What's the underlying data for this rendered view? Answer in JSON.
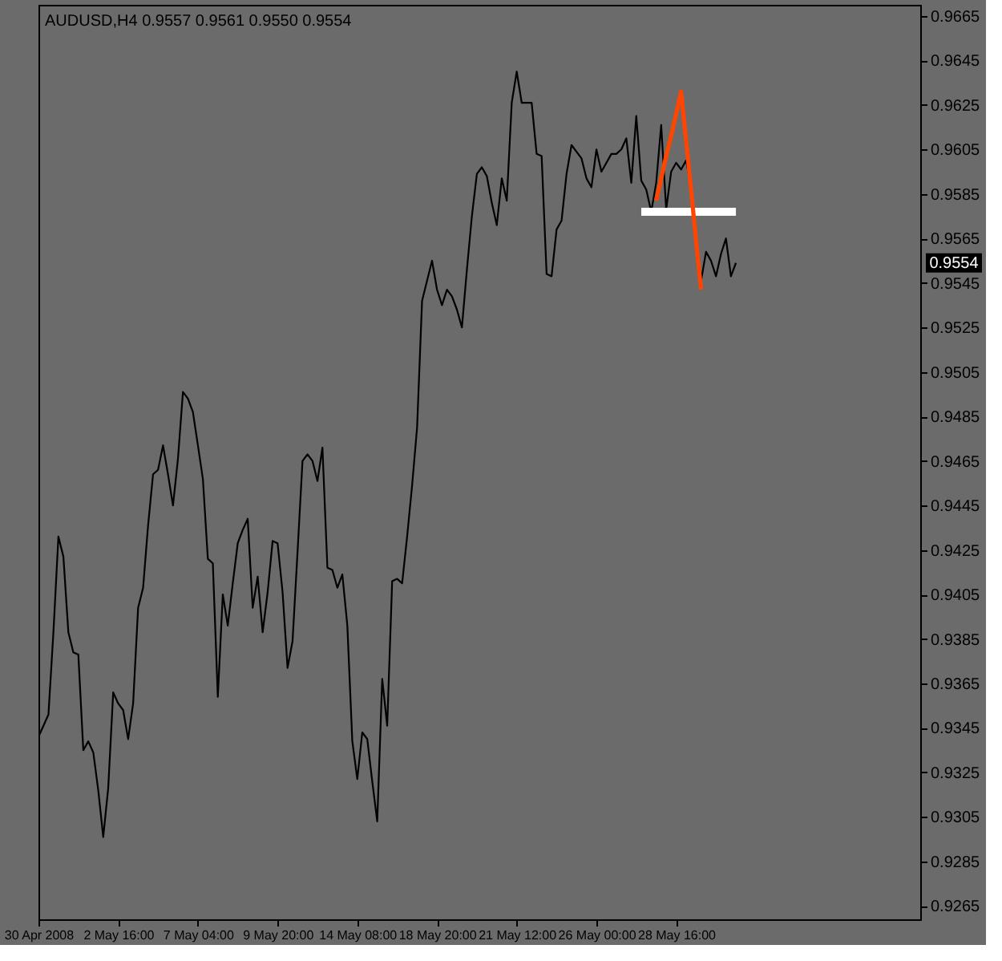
{
  "chart_data": {
    "type": "line",
    "title": "AUDUSD,H4 0.9557 0.9561 0.9550 0.9554",
    "categories": [
      "30 Apr 2008",
      null,
      null,
      null,
      null,
      null,
      null,
      null,
      null,
      null,
      null,
      null,
      null,
      null,
      null,
      null,
      "2 May 16:00",
      null,
      null,
      null,
      null,
      null,
      null,
      null,
      null,
      null,
      null,
      null,
      null,
      null,
      null,
      null,
      "7 May 04:00",
      null,
      null,
      null,
      null,
      null,
      null,
      null,
      null,
      null,
      null,
      null,
      null,
      null,
      null,
      null,
      "9 May 20:00",
      null,
      null,
      null,
      null,
      null,
      null,
      null,
      null,
      null,
      null,
      null,
      null,
      null,
      null,
      null,
      "14 May 08:00",
      null,
      null,
      null,
      null,
      null,
      null,
      null,
      null,
      null,
      null,
      null,
      null,
      null,
      null,
      null,
      "18 May 20:00",
      null,
      null,
      null,
      null,
      null,
      null,
      null,
      null,
      null,
      null,
      null,
      null,
      null,
      null,
      null,
      "21 May 12:00",
      null,
      null,
      null,
      null,
      null,
      null,
      null,
      null,
      null,
      null,
      null,
      null,
      null,
      null,
      null,
      "26 May 00:00",
      null,
      null,
      null,
      null,
      null,
      null,
      null,
      null,
      null,
      null,
      null,
      null,
      null,
      null,
      null,
      "28 May 16:00",
      null,
      null,
      null,
      null,
      null,
      null,
      null,
      null,
      null,
      null,
      null,
      null,
      null,
      null,
      null,
      null,
      null,
      null,
      null,
      null,
      null,
      null,
      null,
      null,
      null,
      null,
      null,
      null,
      null,
      null,
      null,
      null,
      null,
      null,
      null,
      null,
      null,
      null,
      null,
      null,
      null,
      null,
      null,
      null,
      null,
      null,
      null,
      null,
      null
    ],
    "ylim": [
      0.9259,
      0.967
    ],
    "yticks": [
      0.9665,
      0.9645,
      0.9625,
      0.9605,
      0.9585,
      0.9565,
      0.9545,
      0.9525,
      0.9505,
      0.9485,
      0.9465,
      0.9445,
      0.9425,
      0.9405,
      0.9385,
      0.9365,
      0.9345,
      0.9325,
      0.9305,
      0.9285,
      0.9265
    ],
    "series": [
      {
        "color": "#000000",
        "values": [
          0.9341,
          0.9346,
          0.9351,
          0.9388,
          0.9431,
          0.9422,
          0.9388,
          0.9379,
          0.9378,
          0.9335,
          0.9339,
          0.9334,
          0.9317,
          0.9296,
          0.9318,
          0.9361,
          0.9356,
          0.9353,
          0.934,
          0.9356,
          0.9399,
          0.9408,
          0.9436,
          0.9459,
          0.9461,
          0.9472,
          0.9459,
          0.9445,
          0.9466,
          0.9496,
          0.9493,
          0.9487,
          0.9472,
          0.9457,
          0.9421,
          0.9419,
          0.9359,
          0.9405,
          0.9391,
          0.941,
          0.9428,
          0.9434,
          0.9439,
          0.9399,
          0.9413,
          0.9388,
          0.9406,
          0.9429,
          0.9428,
          0.9406,
          0.9372,
          0.9384,
          0.9424,
          0.9465,
          0.9468,
          0.9465,
          0.9456,
          0.9471,
          0.9417,
          0.9416,
          0.9408,
          0.9414,
          0.9391,
          0.9339,
          0.9322,
          0.9343,
          0.934,
          0.9321,
          0.9303,
          0.9367,
          0.9346,
          0.9411,
          0.9412,
          0.941,
          0.9431,
          0.9454,
          0.948,
          0.9537,
          0.9546,
          0.9555,
          0.9542,
          0.9535,
          0.9542,
          0.9539,
          0.9533,
          0.9525,
          0.9551,
          0.9575,
          0.9594,
          0.9597,
          0.9593,
          0.9581,
          0.9571,
          0.9592,
          0.9582,
          0.9626,
          0.964,
          0.9626,
          0.9626,
          0.9626,
          0.9603,
          0.9602,
          0.9549,
          0.9548,
          0.9569,
          0.9573,
          0.9594,
          0.9607,
          0.9604,
          0.9601,
          0.9592,
          0.9588,
          0.9605,
          0.9595,
          0.9599,
          0.9603,
          0.9603,
          0.9605,
          0.961,
          0.959,
          0.962,
          0.9591,
          0.9587,
          0.9577,
          0.959,
          0.9616,
          0.9578,
          0.9595,
          0.9599,
          0.9596,
          0.96,
          0.9588,
          0.9562,
          0.9546,
          0.9559,
          0.9555,
          0.9548,
          0.9558,
          0.9565,
          0.9548,
          0.9554,
          null,
          null,
          null,
          null,
          null,
          null,
          null,
          null,
          null,
          null,
          null,
          null,
          null,
          null,
          null,
          null,
          null,
          null,
          null,
          null,
          null,
          null,
          null,
          null,
          null,
          null,
          null,
          null,
          null,
          null,
          null,
          null,
          null,
          null,
          null,
          null,
          null
        ]
      },
      {
        "color": "#ffffff",
        "values": [
          null,
          null,
          null,
          null,
          null,
          null,
          null,
          null,
          null,
          null,
          null,
          null,
          null,
          null,
          null,
          null,
          null,
          null,
          null,
          null,
          null,
          null,
          null,
          null,
          null,
          null,
          null,
          null,
          null,
          null,
          null,
          null,
          null,
          null,
          null,
          null,
          null,
          null,
          null,
          null,
          null,
          null,
          null,
          null,
          null,
          null,
          null,
          null,
          null,
          null,
          null,
          null,
          null,
          null,
          null,
          null,
          null,
          null,
          null,
          null,
          null,
          null,
          null,
          null,
          null,
          null,
          null,
          null,
          null,
          null,
          null,
          null,
          null,
          null,
          null,
          null,
          null,
          null,
          null,
          null,
          null,
          null,
          null,
          null,
          null,
          null,
          null,
          null,
          null,
          null,
          null,
          null,
          null,
          null,
          null,
          null,
          null,
          null,
          null,
          null,
          null,
          null,
          null,
          null,
          null,
          null,
          null,
          null,
          null,
          null,
          null,
          null,
          null,
          null,
          null,
          null,
          null,
          null,
          null,
          null,
          null,
          0.9577,
          0.9577,
          0.9577,
          0.9577,
          0.9577,
          0.9577,
          0.9577,
          0.9577,
          0.9577,
          0.9577,
          0.9577,
          0.9577,
          0.9577,
          0.9577,
          0.9577,
          0.9577,
          0.9577,
          0.9577,
          0.9577,
          0.9577,
          null,
          null,
          null,
          null,
          null,
          null,
          null,
          null,
          null,
          null,
          null,
          null,
          null,
          null,
          null,
          null,
          null,
          null,
          null,
          null,
          null,
          null,
          null,
          null,
          null,
          null,
          null,
          null,
          null,
          null,
          null,
          null,
          null,
          null,
          null,
          null,
          null
        ]
      },
      {
        "color": "#ff4500",
        "values": [
          null,
          null,
          null,
          null,
          null,
          null,
          null,
          null,
          null,
          null,
          null,
          null,
          null,
          null,
          null,
          null,
          null,
          null,
          null,
          null,
          null,
          null,
          null,
          null,
          null,
          null,
          null,
          null,
          null,
          null,
          null,
          null,
          null,
          null,
          null,
          null,
          null,
          null,
          null,
          null,
          null,
          null,
          null,
          null,
          null,
          null,
          null,
          null,
          null,
          null,
          null,
          null,
          null,
          null,
          null,
          null,
          null,
          null,
          null,
          null,
          null,
          null,
          null,
          null,
          null,
          null,
          null,
          null,
          null,
          null,
          null,
          null,
          null,
          null,
          null,
          null,
          null,
          null,
          null,
          null,
          null,
          null,
          null,
          null,
          null,
          null,
          null,
          null,
          null,
          null,
          null,
          null,
          null,
          null,
          null,
          null,
          null,
          null,
          null,
          null,
          null,
          null,
          null,
          null,
          null,
          null,
          null,
          null,
          null,
          null,
          null,
          null,
          null,
          null,
          null,
          null,
          null,
          null,
          null,
          null,
          null,
          null,
          null,
          null,
          0.9582,
          0.9592,
          0.9602,
          0.9611,
          0.9621,
          0.9631,
          0.9609,
          0.9587,
          0.9564,
          0.9542,
          null,
          null,
          null,
          null,
          null,
          null,
          null,
          null,
          null,
          null,
          null,
          null,
          null,
          null,
          null,
          null,
          null,
          null,
          null,
          null,
          null,
          null,
          null,
          null,
          null,
          null,
          null,
          null,
          null,
          null,
          null,
          null,
          null,
          null,
          null,
          null,
          null,
          null,
          null,
          null,
          null,
          null,
          null,
          null
        ]
      }
    ],
    "annotations": [
      "0.9554"
    ]
  }
}
